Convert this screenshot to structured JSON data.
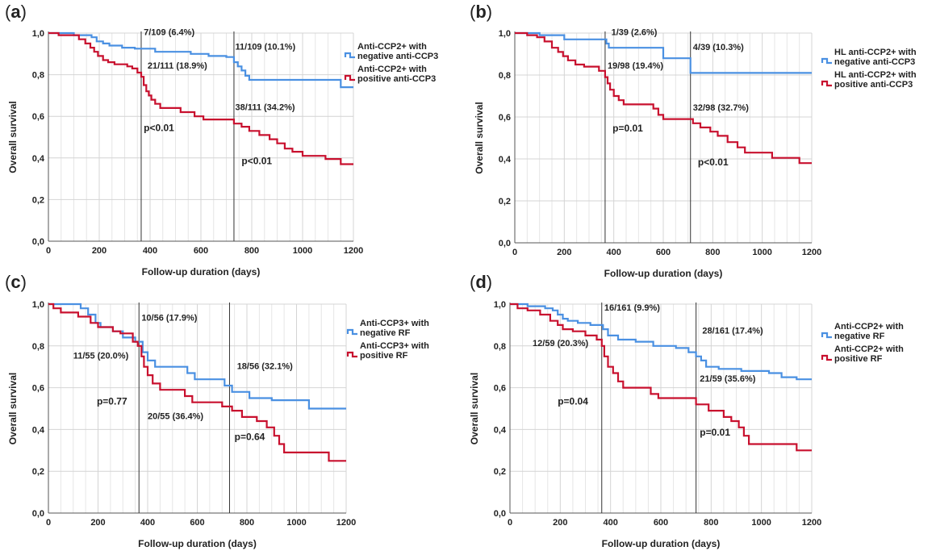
{
  "chart_data": [
    {
      "panel": "a",
      "type": "line",
      "xlabel": "Follow-up duration (days)",
      "ylabel": "Overall survival",
      "xlim": [
        0,
        1200
      ],
      "ylim": [
        0,
        1
      ],
      "x_ticks": [
        "0",
        "200",
        "400",
        "600",
        "800",
        "1000",
        "1200"
      ],
      "y_ticks": [
        "0,0",
        "0,2",
        "0,4",
        "0,6",
        "0,8",
        "1,0"
      ],
      "grid": true,
      "legend_position": "right",
      "reference_lines_x": [
        365,
        730
      ],
      "series": [
        {
          "name": "Anti-CCP2+ with negative anti-CCP3",
          "name_lines": [
            "Anti-CCP2+ with",
            "negative anti-CCP3"
          ],
          "color": "#4a90e2",
          "steps": [
            [
              0,
              1.0
            ],
            [
              100,
              0.99
            ],
            [
              170,
              0.98
            ],
            [
              190,
              0.96
            ],
            [
              215,
              0.95
            ],
            [
              240,
              0.94
            ],
            [
              290,
              0.93
            ],
            [
              340,
              0.925
            ],
            [
              420,
              0.91
            ],
            [
              560,
              0.9
            ],
            [
              630,
              0.89
            ],
            [
              700,
              0.885
            ],
            [
              730,
              0.86
            ],
            [
              745,
              0.84
            ],
            [
              760,
              0.82
            ],
            [
              775,
              0.795
            ],
            [
              790,
              0.775
            ],
            [
              1150,
              0.74
            ],
            [
              1200,
              0.74
            ]
          ]
        },
        {
          "name": "Anti-CCP2+ with positive anti-CCP3",
          "name_lines": [
            "Anti-CCP2+ with",
            "positive anti-CCP3"
          ],
          "color": "#c8102e",
          "steps": [
            [
              0,
              1.0
            ],
            [
              40,
              0.99
            ],
            [
              120,
              0.97
            ],
            [
              145,
              0.95
            ],
            [
              165,
              0.93
            ],
            [
              180,
              0.91
            ],
            [
              195,
              0.89
            ],
            [
              215,
              0.87
            ],
            [
              235,
              0.86
            ],
            [
              260,
              0.85
            ],
            [
              310,
              0.84
            ],
            [
              330,
              0.83
            ],
            [
              350,
              0.81
            ],
            [
              365,
              0.79
            ],
            [
              375,
              0.75
            ],
            [
              385,
              0.72
            ],
            [
              395,
              0.7
            ],
            [
              405,
              0.68
            ],
            [
              420,
              0.66
            ],
            [
              440,
              0.64
            ],
            [
              520,
              0.62
            ],
            [
              575,
              0.6
            ],
            [
              610,
              0.585
            ],
            [
              730,
              0.565
            ],
            [
              760,
              0.55
            ],
            [
              790,
              0.53
            ],
            [
              830,
              0.51
            ],
            [
              870,
              0.49
            ],
            [
              900,
              0.47
            ],
            [
              930,
              0.445
            ],
            [
              960,
              0.43
            ],
            [
              1000,
              0.41
            ],
            [
              1090,
              0.395
            ],
            [
              1150,
              0.37
            ],
            [
              1200,
              0.37
            ]
          ]
        }
      ],
      "annotations": [
        {
          "text": "7/109 (6.4%)",
          "x": 375,
          "y": 0.99
        },
        {
          "text": "21/111 (18.9%)",
          "x": 390,
          "y": 0.83
        },
        {
          "text": "11/109 (10.1%)",
          "x": 735,
          "y": 0.92
        },
        {
          "text": "38/111 (34.2%)",
          "x": 735,
          "y": 0.63
        }
      ],
      "p_values": [
        {
          "text": "p<0.01",
          "x": 375,
          "y": 0.53
        },
        {
          "text": "p<0.01",
          "x": 760,
          "y": 0.37
        }
      ]
    },
    {
      "panel": "b",
      "type": "line",
      "xlabel": "Follow-up duration (days)",
      "ylabel": "Overall survival",
      "xlim": [
        0,
        1200
      ],
      "ylim": [
        0,
        1
      ],
      "x_ticks": [
        "0",
        "200",
        "400",
        "600",
        "800",
        "1000",
        "1200"
      ],
      "y_ticks": [
        "0,0",
        "0,2",
        "0,4",
        "0,6",
        "0,8",
        "1,0"
      ],
      "grid": true,
      "legend_position": "right",
      "reference_lines_x": [
        365,
        710
      ],
      "series": [
        {
          "name": "HL anti-CCP2+ with negative anti-CCP3",
          "name_lines": [
            "HL anti-CCP2+ with",
            "negative anti-CCP3"
          ],
          "color": "#4a90e2",
          "steps": [
            [
              0,
              1.0
            ],
            [
              100,
              0.99
            ],
            [
              200,
              0.97
            ],
            [
              370,
              0.95
            ],
            [
              380,
              0.93
            ],
            [
              600,
              0.88
            ],
            [
              710,
              0.81
            ],
            [
              1200,
              0.81
            ]
          ]
        },
        {
          "name": "HL anti-CCP2+ with positive anti-CCP3",
          "name_lines": [
            "HL anti-CCP2+ with",
            "positive anti-CCP3"
          ],
          "color": "#c8102e",
          "steps": [
            [
              0,
              1.0
            ],
            [
              50,
              0.99
            ],
            [
              90,
              0.98
            ],
            [
              120,
              0.96
            ],
            [
              150,
              0.93
            ],
            [
              175,
              0.91
            ],
            [
              195,
              0.89
            ],
            [
              215,
              0.87
            ],
            [
              245,
              0.85
            ],
            [
              280,
              0.84
            ],
            [
              340,
              0.82
            ],
            [
              365,
              0.79
            ],
            [
              375,
              0.76
            ],
            [
              385,
              0.73
            ],
            [
              400,
              0.7
            ],
            [
              420,
              0.68
            ],
            [
              440,
              0.66
            ],
            [
              560,
              0.64
            ],
            [
              580,
              0.61
            ],
            [
              600,
              0.59
            ],
            [
              720,
              0.57
            ],
            [
              750,
              0.55
            ],
            [
              790,
              0.53
            ],
            [
              820,
              0.51
            ],
            [
              860,
              0.48
            ],
            [
              900,
              0.455
            ],
            [
              930,
              0.43
            ],
            [
              1040,
              0.405
            ],
            [
              1150,
              0.38
            ],
            [
              1200,
              0.38
            ]
          ]
        }
      ],
      "annotations": [
        {
          "text": "1/39 (2.6%)",
          "x": 390,
          "y": 0.99
        },
        {
          "text": "19/98 (19.4%)",
          "x": 375,
          "y": 0.83
        },
        {
          "text": "4/39 (10.3%)",
          "x": 720,
          "y": 0.92
        },
        {
          "text": "32/98 (32.7%)",
          "x": 720,
          "y": 0.63
        }
      ],
      "p_values": [
        {
          "text": "p=0.01",
          "x": 395,
          "y": 0.53
        },
        {
          "text": "p<0.01",
          "x": 740,
          "y": 0.37
        }
      ]
    },
    {
      "panel": "c",
      "type": "line",
      "xlabel": "Follow-up duration (days)",
      "ylabel": "Overall survival",
      "xlim": [
        0,
        1200
      ],
      "ylim": [
        0,
        1
      ],
      "x_ticks": [
        "0",
        "200",
        "400",
        "600",
        "800",
        "1000",
        "1200"
      ],
      "y_ticks": [
        "0,0",
        "0,2",
        "0,4",
        "0,6",
        "0,8",
        "1,0"
      ],
      "grid": true,
      "legend_position": "right",
      "reference_lines_x": [
        365,
        730
      ],
      "series": [
        {
          "name": "Anti-CCP3+ with negative RF",
          "name_lines": [
            "Anti-CCP3+ with",
            "negative RF"
          ],
          "color": "#4a90e2",
          "steps": [
            [
              0,
              1.0
            ],
            [
              130,
              0.98
            ],
            [
              160,
              0.95
            ],
            [
              190,
              0.91
            ],
            [
              210,
              0.89
            ],
            [
              260,
              0.87
            ],
            [
              300,
              0.84
            ],
            [
              350,
              0.82
            ],
            [
              380,
              0.77
            ],
            [
              400,
              0.73
            ],
            [
              430,
              0.7
            ],
            [
              560,
              0.67
            ],
            [
              590,
              0.64
            ],
            [
              710,
              0.61
            ],
            [
              740,
              0.58
            ],
            [
              810,
              0.55
            ],
            [
              900,
              0.54
            ],
            [
              1050,
              0.5
            ],
            [
              1200,
              0.5
            ]
          ]
        },
        {
          "name": "Anti-CCP3+ with positive RF",
          "name_lines": [
            "Anti-CCP3+ with",
            "positive RF"
          ],
          "color": "#c8102e",
          "steps": [
            [
              0,
              1.0
            ],
            [
              20,
              0.98
            ],
            [
              50,
              0.96
            ],
            [
              120,
              0.94
            ],
            [
              170,
              0.91
            ],
            [
              200,
              0.89
            ],
            [
              260,
              0.87
            ],
            [
              290,
              0.86
            ],
            [
              340,
              0.82
            ],
            [
              360,
              0.8
            ],
            [
              375,
              0.75
            ],
            [
              385,
              0.7
            ],
            [
              400,
              0.66
            ],
            [
              420,
              0.62
            ],
            [
              450,
              0.59
            ],
            [
              550,
              0.56
            ],
            [
              580,
              0.53
            ],
            [
              700,
              0.51
            ],
            [
              740,
              0.49
            ],
            [
              780,
              0.46
            ],
            [
              840,
              0.44
            ],
            [
              880,
              0.41
            ],
            [
              910,
              0.37
            ],
            [
              930,
              0.33
            ],
            [
              950,
              0.29
            ],
            [
              1130,
              0.25
            ],
            [
              1200,
              0.25
            ]
          ]
        }
      ],
      "annotations": [
        {
          "text": "10/56 (17.9%)",
          "x": 375,
          "y": 0.92
        },
        {
          "text": "11/55 (20.0%)",
          "x": 100,
          "y": 0.74
        },
        {
          "text": "18/56 (32.1%)",
          "x": 760,
          "y": 0.69
        },
        {
          "text": "20/55 (36.4%)",
          "x": 400,
          "y": 0.45
        }
      ],
      "p_values": [
        {
          "text": "p=0.77",
          "x": 195,
          "y": 0.52
        },
        {
          "text": "p=0.64",
          "x": 750,
          "y": 0.35
        }
      ]
    },
    {
      "panel": "d",
      "type": "line",
      "xlabel": "Follow-up duration (days)",
      "ylabel": "Overall survival",
      "xlim": [
        0,
        1200
      ],
      "ylim": [
        0,
        1
      ],
      "x_ticks": [
        "0",
        "200",
        "400",
        "600",
        "800",
        "1000",
        "1200"
      ],
      "y_ticks": [
        "0,0",
        "0,2",
        "0,4",
        "0,6",
        "0,8",
        "1,0"
      ],
      "grid": true,
      "legend_position": "right",
      "reference_lines_x": [
        365,
        740
      ],
      "series": [
        {
          "name": "Anti-CCP2+ with negative RF",
          "name_lines": [
            "Anti-CCP2+ with",
            "negative RF"
          ],
          "color": "#4a90e2",
          "steps": [
            [
              0,
              1.0
            ],
            [
              70,
              0.99
            ],
            [
              140,
              0.98
            ],
            [
              170,
              0.97
            ],
            [
              190,
              0.95
            ],
            [
              210,
              0.93
            ],
            [
              230,
              0.92
            ],
            [
              270,
              0.91
            ],
            [
              320,
              0.9
            ],
            [
              370,
              0.88
            ],
            [
              390,
              0.85
            ],
            [
              430,
              0.83
            ],
            [
              500,
              0.82
            ],
            [
              570,
              0.8
            ],
            [
              660,
              0.79
            ],
            [
              710,
              0.77
            ],
            [
              740,
              0.75
            ],
            [
              760,
              0.73
            ],
            [
              780,
              0.7
            ],
            [
              830,
              0.69
            ],
            [
              920,
              0.68
            ],
            [
              1030,
              0.67
            ],
            [
              1080,
              0.65
            ],
            [
              1140,
              0.64
            ],
            [
              1200,
              0.64
            ]
          ]
        },
        {
          "name": "Anti-CCP2+ with positive RF",
          "name_lines": [
            "Anti-CCP2+ with",
            "positive RF"
          ],
          "color": "#c8102e",
          "steps": [
            [
              0,
              1.0
            ],
            [
              30,
              0.98
            ],
            [
              70,
              0.97
            ],
            [
              120,
              0.95
            ],
            [
              160,
              0.92
            ],
            [
              190,
              0.9
            ],
            [
              210,
              0.88
            ],
            [
              250,
              0.87
            ],
            [
              300,
              0.85
            ],
            [
              345,
              0.83
            ],
            [
              365,
              0.8
            ],
            [
              375,
              0.75
            ],
            [
              390,
              0.7
            ],
            [
              410,
              0.67
            ],
            [
              430,
              0.63
            ],
            [
              450,
              0.6
            ],
            [
              560,
              0.57
            ],
            [
              590,
              0.55
            ],
            [
              740,
              0.52
            ],
            [
              790,
              0.49
            ],
            [
              850,
              0.46
            ],
            [
              880,
              0.44
            ],
            [
              910,
              0.41
            ],
            [
              930,
              0.37
            ],
            [
              950,
              0.33
            ],
            [
              1140,
              0.3
            ],
            [
              1200,
              0.3
            ]
          ]
        }
      ],
      "annotations": [
        {
          "text": "16/161 (9.9%)",
          "x": 375,
          "y": 0.97
        },
        {
          "text": "12/59 (20.3%)",
          "x": 90,
          "y": 0.8
        },
        {
          "text": "28/161 (17.4%)",
          "x": 765,
          "y": 0.86
        },
        {
          "text": "21/59 (35.6%)",
          "x": 755,
          "y": 0.63
        }
      ],
      "p_values": [
        {
          "text": "p=0.04",
          "x": 190,
          "y": 0.52
        },
        {
          "text": "p=0.01",
          "x": 755,
          "y": 0.37
        }
      ]
    }
  ]
}
